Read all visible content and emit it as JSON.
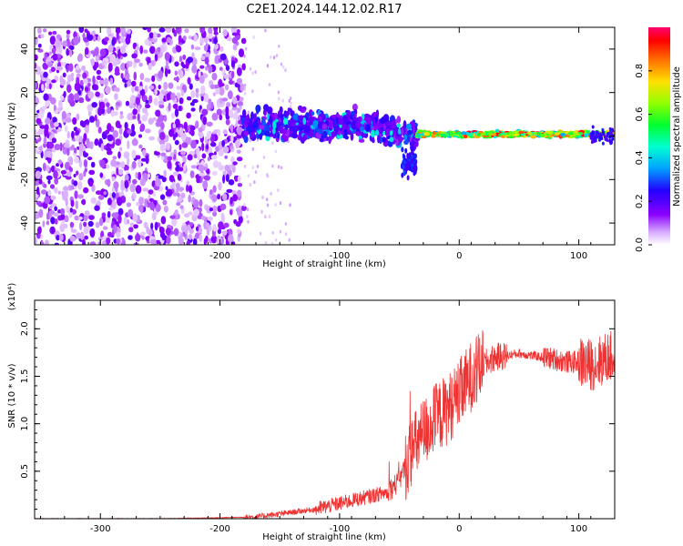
{
  "figure": {
    "title": "C2E1.2024.144.12.02.R17"
  },
  "chart_data": [
    {
      "type": "heatmap",
      "title": "C2E1.2024.144.12.02.R17",
      "xlabel": "Height of straight line (km)",
      "ylabel": "Frequency (Hz)",
      "xlim": [
        -355,
        130
      ],
      "ylim": [
        -50,
        50
      ],
      "xticks": [
        -300,
        -200,
        -100,
        0,
        100
      ],
      "xtick_labels": [
        "-300",
        "-200",
        "-100",
        "0",
        "100"
      ],
      "yticks": [
        -40,
        -20,
        0,
        20,
        40
      ],
      "ytick_labels": [
        "-40",
        "-20",
        "0",
        "20",
        "40"
      ],
      "colorbar": {
        "label": "Normalized spectral amplitude",
        "range": [
          0,
          1
        ],
        "ticks": [
          0.0,
          0.2,
          0.4,
          0.6,
          0.8
        ],
        "tick_labels": [
          "0.0",
          "0.2",
          "0.4",
          "0.6",
          "0.8"
        ],
        "colormap": "rainbow"
      },
      "features": [
        {
          "x_range": [
            -355,
            -180
          ],
          "freq_range": [
            -50,
            50
          ],
          "amplitude": 0.08,
          "description_region": "broadband noise"
        },
        {
          "x_range": [
            -180,
            -35
          ],
          "freq_center": 5,
          "freq_halfwidth": 8,
          "amplitude": 0.25
        },
        {
          "x_range": [
            -35,
            130
          ],
          "freq_center": 1,
          "freq_halfwidth": 2,
          "amplitude": 0.9
        }
      ]
    },
    {
      "type": "line",
      "xlabel": "Height of straight line (km)",
      "ylabel": "SNR (10 * v/v)",
      "y_multiplier": "(x10⁴)",
      "xlim": [
        -355,
        130
      ],
      "ylim": [
        0,
        2.3
      ],
      "xticks": [
        -300,
        -200,
        -100,
        0,
        100
      ],
      "xtick_labels": [
        "-300",
        "-200",
        "-100",
        "0",
        "100"
      ],
      "yticks": [
        0.5,
        1.0,
        1.5,
        2.0
      ],
      "ytick_labels": [
        "0.5",
        "1.0",
        "1.5",
        "2.0"
      ],
      "series": [
        {
          "color": "#ee3333",
          "x": [
            -355,
            -300,
            -250,
            -200,
            -170,
            -150,
            -120,
            -100,
            -80,
            -60,
            -50,
            -40,
            -30,
            -20,
            -10,
            0,
            10,
            20,
            30,
            40,
            50,
            60,
            70,
            80,
            90,
            100,
            110,
            125
          ],
          "y": [
            0.0,
            0.0,
            0.0,
            0.01,
            0.02,
            0.05,
            0.1,
            0.16,
            0.22,
            0.28,
            0.4,
            0.7,
            0.9,
            1.05,
            1.15,
            1.3,
            1.5,
            1.62,
            1.7,
            1.72,
            1.74,
            1.72,
            1.7,
            1.68,
            1.65,
            1.65,
            1.62,
            1.7
          ]
        }
      ]
    }
  ]
}
